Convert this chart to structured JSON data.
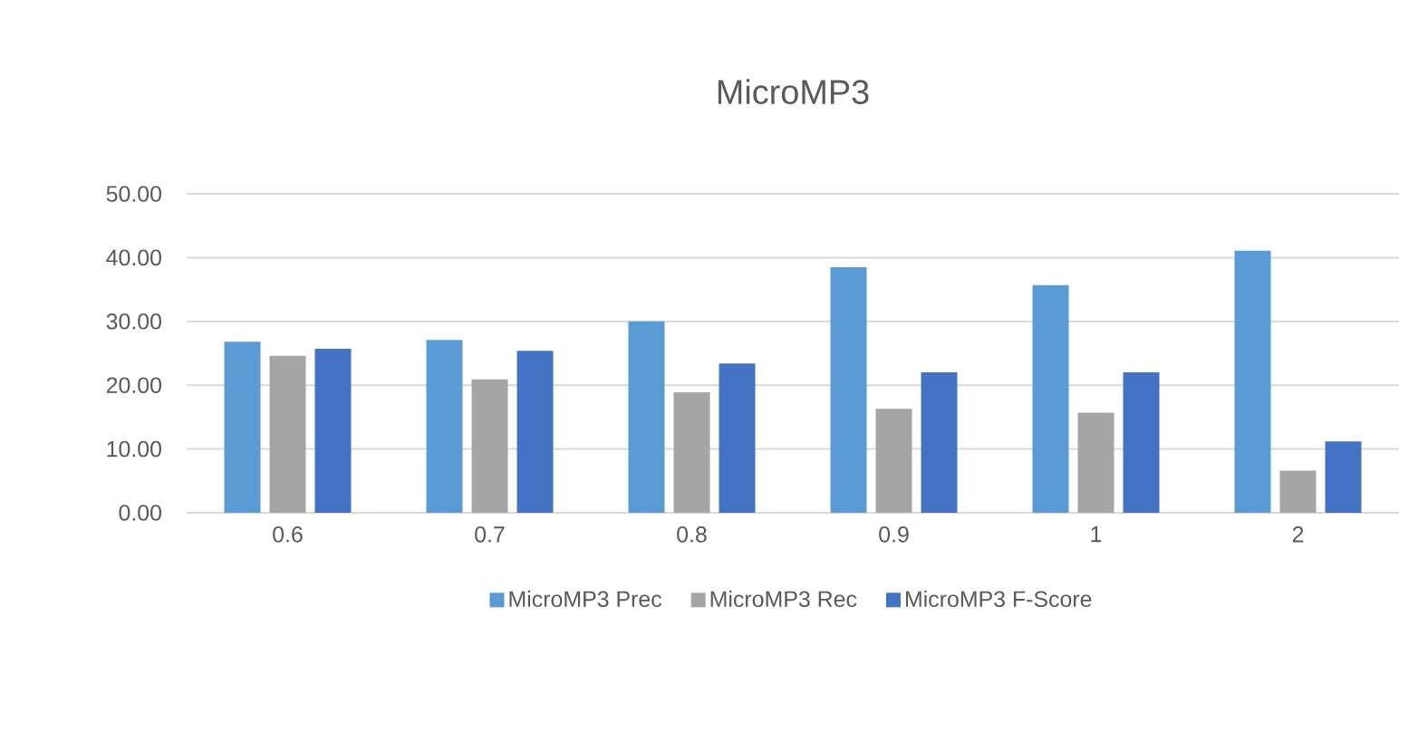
{
  "chart_data": {
    "type": "bar",
    "title": "MicroMP3",
    "categories": [
      "0.6",
      "0.7",
      "0.8",
      "0.9",
      "1",
      "2"
    ],
    "series": [
      {
        "name": "MicroMP3 Prec",
        "color": "#5b9bd5",
        "values": [
          26.8,
          27.1,
          30.0,
          38.5,
          35.7,
          41.1
        ]
      },
      {
        "name": "MicroMP3 Rec",
        "color": "#a5a5a5",
        "values": [
          24.6,
          20.9,
          18.9,
          16.3,
          15.7,
          6.6
        ]
      },
      {
        "name": "MicroMP3 F-Score",
        "color": "#4472c4",
        "values": [
          25.7,
          25.4,
          23.4,
          22.0,
          22.0,
          11.2
        ]
      }
    ],
    "ylim": [
      0,
      50
    ],
    "yticks": [
      {
        "value": 0,
        "label": "0.00"
      },
      {
        "value": 10,
        "label": "10.00"
      },
      {
        "value": 20,
        "label": "20.00"
      },
      {
        "value": 30,
        "label": "30.00"
      },
      {
        "value": 40,
        "label": "40.00"
      },
      {
        "value": 50,
        "label": "50.00"
      }
    ],
    "grid": "y",
    "legend": "bottom"
  }
}
